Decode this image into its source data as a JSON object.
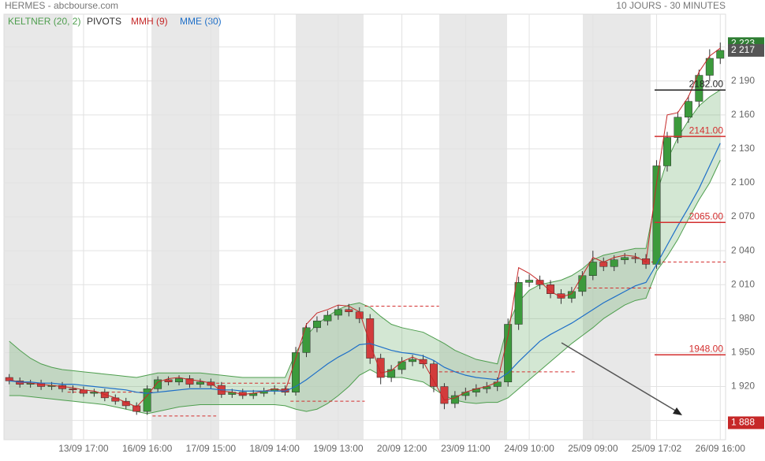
{
  "chart_data": {
    "type": "candlestick",
    "title": "HERMES - abcbourse.com",
    "subtitle": "10 JOURS - 30 MINUTES",
    "categories": [
      null,
      null,
      null,
      null,
      null,
      null,
      null,
      "13/09 17:00",
      null,
      null,
      null,
      null,
      null,
      "16/09 16:00",
      null,
      null,
      null,
      null,
      null,
      "17/09 15:00",
      null,
      null,
      null,
      null,
      null,
      "18/09 14:00",
      null,
      null,
      null,
      null,
      null,
      "19/09 13:00",
      null,
      null,
      null,
      null,
      null,
      "20/09 12:00",
      null,
      null,
      null,
      null,
      null,
      "23/09 11:00",
      null,
      null,
      null,
      null,
      null,
      "24/09 10:00",
      null,
      null,
      null,
      null,
      null,
      "25/09 09:00",
      null,
      null,
      null,
      null,
      null,
      "25/09 17:02",
      null,
      null,
      null,
      null,
      null,
      "26/09 16:00"
    ],
    "open": [
      1928,
      1925,
      1922,
      1923,
      1920,
      1921,
      1918,
      1917,
      1914,
      1915,
      1910,
      1907,
      1903,
      1898,
      1918,
      1926,
      1924,
      1927,
      1922,
      1924,
      1921,
      1913,
      1915,
      1912,
      1914,
      1916,
      1918,
      1915,
      1950,
      1972,
      1978,
      1983,
      1988,
      1986,
      1980,
      1945,
      1928,
      1935,
      1942,
      1944,
      1940,
      1920,
      1905,
      1912,
      1915,
      1918,
      1920,
      1924,
      1975,
      2012,
      2014,
      2010,
      2002,
      1998,
      2004,
      2018,
      2030,
      2026,
      2032,
      2034,
      2033,
      2028,
      2115,
      2140,
      2158,
      2172,
      2195,
      2210
    ],
    "high": [
      1931,
      1928,
      1926,
      1926,
      1924,
      1924,
      1921,
      1920,
      1918,
      1918,
      1913,
      1910,
      1906,
      1921,
      1929,
      1929,
      1930,
      1930,
      1927,
      1927,
      1924,
      1918,
      1918,
      1917,
      1919,
      1921,
      1921,
      1955,
      1976,
      1982,
      1987,
      1992,
      1993,
      1990,
      1984,
      1949,
      1939,
      1946,
      1948,
      1948,
      1943,
      1923,
      1916,
      1919,
      1922,
      1924,
      1928,
      1980,
      2017,
      2019,
      2018,
      2014,
      2006,
      2008,
      2022,
      2040,
      2034,
      2036,
      2038,
      2038,
      2037,
      2120,
      2145,
      2163,
      2177,
      2200,
      2218,
      2224
    ],
    "low": [
      1922,
      1919,
      1919,
      1917,
      1917,
      1915,
      1914,
      1911,
      1911,
      1907,
      1904,
      1900,
      1895,
      1895,
      1915,
      1921,
      1921,
      1919,
      1919,
      1918,
      1910,
      1910,
      1909,
      1909,
      1911,
      1913,
      1912,
      1912,
      1946,
      1968,
      1974,
      1979,
      1982,
      1976,
      1940,
      1922,
      1924,
      1931,
      1938,
      1936,
      1915,
      1900,
      1901,
      1908,
      1911,
      1914,
      1916,
      1920,
      1970,
      2008,
      2006,
      1998,
      1993,
      1994,
      2000,
      2014,
      2022,
      2022,
      2028,
      2029,
      2024,
      2024,
      2110,
      2135,
      2153,
      2167,
      2190,
      2205
    ],
    "close": [
      1925,
      1922,
      1923,
      1920,
      1921,
      1918,
      1917,
      1914,
      1915,
      1910,
      1907,
      1903,
      1898,
      1918,
      1926,
      1924,
      1927,
      1922,
      1924,
      1921,
      1913,
      1915,
      1912,
      1914,
      1916,
      1918,
      1915,
      1950,
      1972,
      1978,
      1983,
      1988,
      1986,
      1980,
      1945,
      1928,
      1935,
      1942,
      1944,
      1940,
      1920,
      1905,
      1912,
      1915,
      1918,
      1920,
      1924,
      1975,
      2012,
      2014,
      2010,
      2002,
      1998,
      2004,
      2018,
      2030,
      2026,
      2032,
      2034,
      2033,
      2028,
      2115,
      2140,
      2158,
      2172,
      2195,
      2210,
      2217
    ],
    "up_color": "#3c9a3c",
    "down_color": "#d23c3c",
    "series": [
      {
        "name": "KELTNER (20, 2)",
        "color": "#4e9e4e",
        "upper": [
          1960,
          1952,
          1945,
          1940,
          1937,
          1935,
          1934,
          1933,
          1932,
          1931,
          1930,
          1929,
          1928,
          1930,
          1932,
          1932,
          1932,
          1932,
          1932,
          1931,
          1930,
          1929,
          1928,
          1928,
          1928,
          1928,
          1928,
          1950,
          1965,
          1975,
          1982,
          1988,
          1992,
          1994,
          1990,
          1982,
          1975,
          1972,
          1970,
          1968,
          1963,
          1958,
          1952,
          1948,
          1944,
          1942,
          1940,
          1975,
          1995,
          2005,
          2010,
          2012,
          2014,
          2018,
          2024,
          2032,
          2036,
          2038,
          2040,
          2042,
          2042,
          2090,
          2120,
          2140,
          2155,
          2168,
          2176,
          2182
        ],
        "lower": [
          1912,
          1912,
          1911,
          1910,
          1909,
          1908,
          1907,
          1906,
          1905,
          1904,
          1902,
          1900,
          1898,
          1896,
          1898,
          1900,
          1902,
          1903,
          1904,
          1904,
          1904,
          1904,
          1904,
          1904,
          1904,
          1904,
          1903,
          1900,
          1898,
          1900,
          1905,
          1912,
          1920,
          1930,
          1935,
          1930,
          1928,
          1928,
          1926,
          1924,
          1918,
          1912,
          1908,
          1906,
          1905,
          1906,
          1906,
          1910,
          1918,
          1926,
          1934,
          1942,
          1950,
          1958,
          1965,
          1972,
          1980,
          1986,
          1992,
          1996,
          1998,
          2022,
          2035,
          2050,
          2068,
          2085,
          2100,
          2120
        ]
      },
      {
        "name": "MMH (9)",
        "color": "#c62828",
        "values": [
          1926,
          1924,
          1923,
          1922,
          1921,
          1920,
          1919,
          1917,
          1916,
          1913,
          1910,
          1906,
          1902,
          1912,
          1924,
          1927,
          1928,
          1926,
          1925,
          1923,
          1916,
          1915,
          1913,
          1914,
          1916,
          1918,
          1916,
          1945,
          1975,
          1985,
          1988,
          1992,
          1991,
          1986,
          1958,
          1932,
          1934,
          1942,
          1946,
          1942,
          1925,
          1908,
          1910,
          1915,
          1918,
          1920,
          1924,
          1965,
          2025,
          2020,
          2013,
          2004,
          1999,
          2002,
          2018,
          2034,
          2030,
          2034,
          2036,
          2035,
          2030,
          2100,
          2160,
          2162,
          2176,
          2198,
          2212,
          2219
        ]
      },
      {
        "name": "MME (30)",
        "color": "#1e6fc8",
        "values": [
          1925,
          1924,
          1924,
          1923,
          1923,
          1922,
          1922,
          1921,
          1920,
          1919,
          1918,
          1917,
          1915,
          1914,
          1915,
          1916,
          1917,
          1918,
          1918,
          1918,
          1917,
          1917,
          1916,
          1916,
          1916,
          1916,
          1916,
          1920,
          1926,
          1933,
          1940,
          1946,
          1951,
          1957,
          1958,
          1955,
          1952,
          1950,
          1949,
          1947,
          1943,
          1937,
          1933,
          1930,
          1928,
          1927,
          1926,
          1932,
          1942,
          1951,
          1960,
          1966,
          1971,
          1976,
          1982,
          1988,
          1994,
          1999,
          2004,
          2009,
          2012,
          2028,
          2045,
          2062,
          2078,
          2095,
          2115,
          2135
        ]
      }
    ],
    "pivots": {
      "name": "PIVOTS",
      "color": "#d32f2f",
      "segments": [
        {
          "from": 6,
          "to": 14,
          "value": 1915
        },
        {
          "from": 14,
          "to": 20,
          "value": 1894
        },
        {
          "from": 20,
          "to": 27,
          "value": 1923
        },
        {
          "from": 27,
          "to": 34,
          "value": 1907
        },
        {
          "from": 34,
          "to": 41,
          "value": 1991
        },
        {
          "from": 41,
          "to": 54,
          "value": 1933
        },
        {
          "from": 54,
          "to": 61,
          "value": 2007
        },
        {
          "from": 61,
          "to": 68,
          "value": 2030
        }
      ],
      "levels": [
        {
          "value": 2182,
          "label": "2182.00",
          "color": "#222222"
        },
        {
          "value": 2141,
          "label": "2141.00",
          "color": "#d32f2f"
        },
        {
          "value": 2065,
          "label": "2065.00",
          "color": "#d32f2f"
        },
        {
          "value": 1948,
          "label": "1948.00",
          "color": "#d32f2f"
        }
      ]
    },
    "price_tags": [
      {
        "value": 2223,
        "label": "2 223",
        "color": "#2e7d32"
      },
      {
        "value": 2217,
        "label": "2 217",
        "color": "#555555"
      },
      {
        "value": 1888,
        "label": "1 888",
        "color": "#c62828"
      }
    ],
    "ylim": [
      1873,
      2249
    ],
    "yticks": [
      {
        "value": 1890,
        "label": "1 890"
      },
      {
        "value": 1920,
        "label": "1 920"
      },
      {
        "value": 1950,
        "label": "1 950"
      },
      {
        "value": 1980,
        "label": "1 980"
      },
      {
        "value": 2010,
        "label": "2 010"
      },
      {
        "value": 2040,
        "label": "2 040"
      },
      {
        "value": 2070,
        "label": "2 070"
      },
      {
        "value": 2100,
        "label": "2 100"
      },
      {
        "value": 2130,
        "label": "2 130"
      },
      {
        "value": 2160,
        "label": "2 160"
      },
      {
        "value": 2190,
        "label": "2 190"
      },
      {
        "value": 2220,
        "label": "2 220"
      }
    ],
    "grid": true
  }
}
